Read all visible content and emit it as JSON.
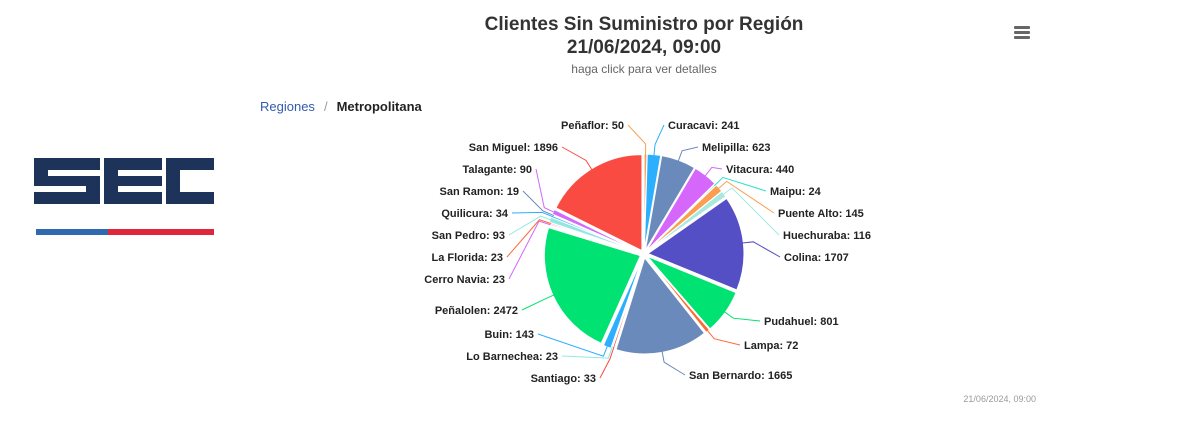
{
  "header": {
    "title_line1": "Clientes Sin Suministro por Región",
    "title_line2": "21/06/2024, 09:00",
    "subtitle": "haga click para ver detalles"
  },
  "logo": {
    "text": "SEC",
    "colors": {
      "navy": "#1e3359",
      "blue": "#2f6ab1",
      "red": "#e0263a"
    }
  },
  "breadcrumb": {
    "parent": "Regiones",
    "separator": "/",
    "current": "Metropolitana"
  },
  "menu": {
    "icon": "hamburger-menu-icon"
  },
  "footer": {
    "timestamp": "21/06/2024, 09:00"
  },
  "chart_data": {
    "type": "pie",
    "title": "Clientes Sin Suministro por Región",
    "subtitle": "haga click para ver detalles",
    "series": [
      {
        "name": "Curacavi",
        "value": 241,
        "color": "#2caffe"
      },
      {
        "name": "Melipilla",
        "value": 623,
        "color": "#6b8abc"
      },
      {
        "name": "Vitacura",
        "value": 440,
        "color": "#d568fb"
      },
      {
        "name": "Maipu",
        "value": 24,
        "color": "#2ee0ca"
      },
      {
        "name": "Puente Alto",
        "value": 145,
        "color": "#fa9f52"
      },
      {
        "name": "Huechuraba",
        "value": 116,
        "color": "#a8e8e0"
      },
      {
        "name": "Colina",
        "value": 1707,
        "color": "#544fc5"
      },
      {
        "name": "Pudahuel",
        "value": 801,
        "color": "#00e272"
      },
      {
        "name": "Lampa",
        "value": 72,
        "color": "#fe6a35"
      },
      {
        "name": "San Bernardo",
        "value": 1665,
        "color": "#6b8abc"
      },
      {
        "name": "Santiago",
        "value": 33,
        "color": "#fa4b42"
      },
      {
        "name": "Lo Barnechea",
        "value": 23,
        "color": "#91e8e1"
      },
      {
        "name": "Buin",
        "value": 143,
        "color": "#2caffe"
      },
      {
        "name": "Peñalolen",
        "value": 2472,
        "color": "#00e272"
      },
      {
        "name": "Cerro Navia",
        "value": 23,
        "color": "#d568fb"
      },
      {
        "name": "La Florida",
        "value": 23,
        "color": "#fe6a35"
      },
      {
        "name": "San Pedro",
        "value": 93,
        "color": "#91e8e1"
      },
      {
        "name": "Quilicura",
        "value": 34,
        "color": "#2caffe"
      },
      {
        "name": "San Ramon",
        "value": 19,
        "color": "#6b8abc"
      },
      {
        "name": "Talagante",
        "value": 90,
        "color": "#d568fb"
      },
      {
        "name": "San Miguel",
        "value": 1896,
        "color": "#fa4b42"
      },
      {
        "name": "Peñaflor",
        "value": 50,
        "color": "#fa9f52"
      }
    ],
    "legend": "none",
    "data_labels": "name: value"
  }
}
